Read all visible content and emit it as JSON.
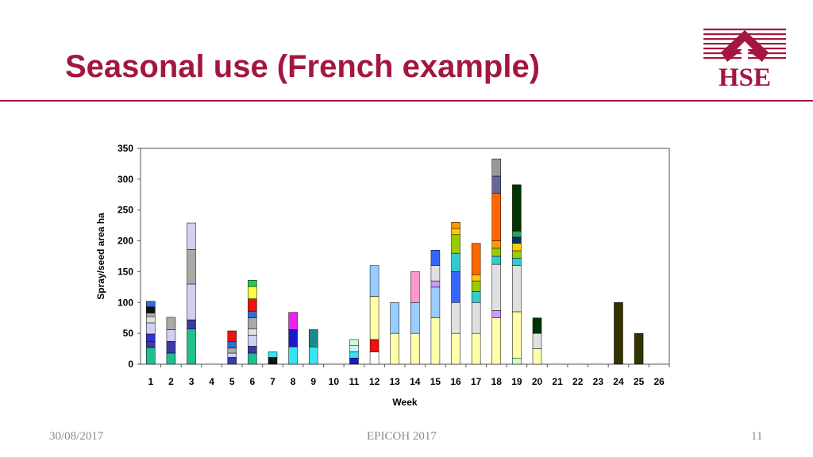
{
  "slide": {
    "title": "Seasonal use (French example)",
    "logo_text": "HSE",
    "footer_date": "30/08/2017",
    "footer_center": "EPICOH 2017",
    "page_number": "11",
    "accent_color": "#a3173e"
  },
  "chart_data": {
    "type": "bar",
    "stacked": true,
    "xlabel": "Week",
    "ylabel": "Spray/seed area ha",
    "ylim": [
      0,
      350
    ],
    "yticks": [
      0,
      50,
      100,
      150,
      200,
      250,
      300,
      350
    ],
    "categories": [
      "1",
      "2",
      "3",
      "4",
      "5",
      "6",
      "7",
      "8",
      "9",
      "10",
      "11",
      "12",
      "13",
      "14",
      "15",
      "16",
      "17",
      "18",
      "19",
      "20",
      "21",
      "22",
      "23",
      "24",
      "25",
      "26"
    ],
    "grid": false,
    "legend": "none",
    "stacks": [
      [
        {
          "v": 27,
          "c": "#1fbf8f"
        },
        {
          "v": 10,
          "c": "#3a3aa8"
        },
        {
          "v": 12,
          "c": "#3333cc"
        },
        {
          "v": 18,
          "c": "#d0d0f5"
        },
        {
          "v": 10,
          "c": "#e0e0e0"
        },
        {
          "v": 6,
          "c": "#aaaaaa"
        },
        {
          "v": 10,
          "c": "#111111"
        },
        {
          "v": 9,
          "c": "#2b6fd6"
        }
      ],
      [
        {
          "v": 18,
          "c": "#1fbf8f"
        },
        {
          "v": 19,
          "c": "#3a3aa8"
        },
        {
          "v": 19,
          "c": "#d0d0f5"
        },
        {
          "v": 20,
          "c": "#aaaaaa"
        }
      ],
      [
        {
          "v": 57,
          "c": "#1fbf8f"
        },
        {
          "v": 15,
          "c": "#3a3aa8"
        },
        {
          "v": 58,
          "c": "#d0d0f5"
        },
        {
          "v": 56,
          "c": "#aaaaaa"
        },
        {
          "v": 43,
          "c": "#d0d0f5"
        }
      ],
      [],
      [
        {
          "v": 11,
          "c": "#3a3aa8"
        },
        {
          "v": 7,
          "c": "#d0d0f5"
        },
        {
          "v": 8,
          "c": "#aaaaaa"
        },
        {
          "v": 11,
          "c": "#2b6fd6"
        },
        {
          "v": 17,
          "c": "#ee1111"
        }
      ],
      [
        {
          "v": 18,
          "c": "#1fbf8f"
        },
        {
          "v": 11,
          "c": "#3a3aa8"
        },
        {
          "v": 18,
          "c": "#d0d0f5"
        },
        {
          "v": 10,
          "c": "#e0e0e0"
        },
        {
          "v": 18,
          "c": "#aaaaaa"
        },
        {
          "v": 11,
          "c": "#2b6fd6"
        },
        {
          "v": 20,
          "c": "#ee1111"
        },
        {
          "v": 20,
          "c": "#ffff44"
        },
        {
          "v": 10,
          "c": "#22cc44"
        }
      ],
      [
        {
          "v": 11,
          "c": "#111111"
        },
        {
          "v": 9,
          "c": "#33e5f0"
        }
      ],
      [
        {
          "v": 28,
          "c": "#33e5f0"
        },
        {
          "v": 28,
          "c": "#1a1acc"
        },
        {
          "v": 28,
          "c": "#ee22ee"
        }
      ],
      [
        {
          "v": 28,
          "c": "#33e5f0"
        },
        {
          "v": 28,
          "c": "#1a8a8a"
        }
      ],
      [],
      [
        {
          "v": 10,
          "c": "#1a1acc"
        },
        {
          "v": 10,
          "c": "#33e5f0"
        },
        {
          "v": 10,
          "c": "#bff5f5"
        },
        {
          "v": 10,
          "c": "#ccffcc"
        }
      ],
      [
        {
          "v": 20,
          "c": "#ffffff"
        },
        {
          "v": 20,
          "c": "#ee1111"
        },
        {
          "v": 70,
          "c": "#ffffaa"
        },
        {
          "v": 50,
          "c": "#99ccff"
        }
      ],
      [
        {
          "v": 50,
          "c": "#ffffaa"
        },
        {
          "v": 50,
          "c": "#99ccff"
        }
      ],
      [
        {
          "v": 50,
          "c": "#ffffaa"
        },
        {
          "v": 50,
          "c": "#99ccff"
        },
        {
          "v": 50,
          "c": "#ff99cc"
        }
      ],
      [
        {
          "v": 75,
          "c": "#ffffaa"
        },
        {
          "v": 50,
          "c": "#99ccff"
        },
        {
          "v": 10,
          "c": "#cc99ff"
        },
        {
          "v": 25,
          "c": "#e0e0e0"
        },
        {
          "v": 25,
          "c": "#3366ff"
        }
      ],
      [
        {
          "v": 50,
          "c": "#ffffaa"
        },
        {
          "v": 50,
          "c": "#e0e0e0"
        },
        {
          "v": 50,
          "c": "#3366ff"
        },
        {
          "v": 30,
          "c": "#33cccc"
        },
        {
          "v": 30,
          "c": "#99cc00"
        },
        {
          "v": 10,
          "c": "#ffcc00"
        },
        {
          "v": 10,
          "c": "#ff9900"
        }
      ],
      [
        {
          "v": 50,
          "c": "#ffffaa"
        },
        {
          "v": 50,
          "c": "#e0e0e0"
        },
        {
          "v": 18,
          "c": "#33cccc"
        },
        {
          "v": 17,
          "c": "#99cc00"
        },
        {
          "v": 10,
          "c": "#ffcc00"
        },
        {
          "v": 51,
          "c": "#ff6600"
        }
      ],
      [
        {
          "v": 75,
          "c": "#ffffaa"
        },
        {
          "v": 12,
          "c": "#cc99ff"
        },
        {
          "v": 75,
          "c": "#e0e0e0"
        },
        {
          "v": 13,
          "c": "#33cccc"
        },
        {
          "v": 13,
          "c": "#99cc00"
        },
        {
          "v": 12,
          "c": "#ff9900"
        },
        {
          "v": 77,
          "c": "#ff6600"
        },
        {
          "v": 28,
          "c": "#666699"
        },
        {
          "v": 28,
          "c": "#999999"
        }
      ],
      [
        {
          "v": 10,
          "c": "#ccffcc"
        },
        {
          "v": 75,
          "c": "#ffffaa"
        },
        {
          "v": 75,
          "c": "#e0e0e0"
        },
        {
          "v": 12,
          "c": "#33cccc"
        },
        {
          "v": 12,
          "c": "#99cc00"
        },
        {
          "v": 12,
          "c": "#ffcc00"
        },
        {
          "v": 10,
          "c": "#003366"
        },
        {
          "v": 10,
          "c": "#339966"
        },
        {
          "v": 75,
          "c": "#003300"
        }
      ],
      [
        {
          "v": 25,
          "c": "#ffffaa"
        },
        {
          "v": 25,
          "c": "#e0e0e0"
        },
        {
          "v": 25,
          "c": "#003300"
        }
      ],
      [],
      [],
      [],
      [
        {
          "v": 100,
          "c": "#333300"
        }
      ],
      [
        {
          "v": 50,
          "c": "#333300"
        }
      ],
      []
    ]
  }
}
